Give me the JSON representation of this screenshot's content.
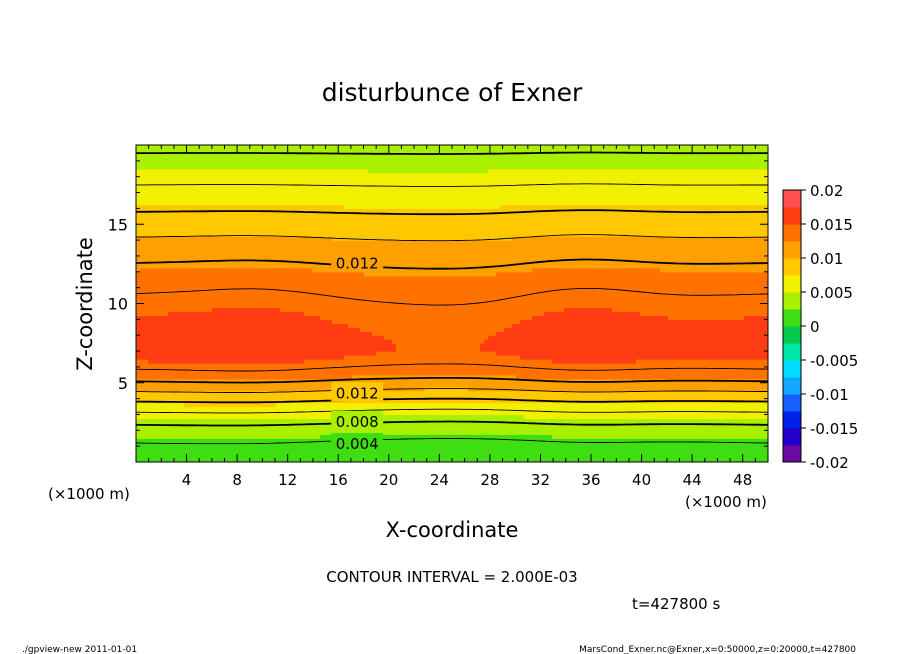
{
  "chart_data": {
    "type": "heatmap",
    "title": "disturbunce of Exner",
    "xlabel": "X-coordinate",
    "ylabel": "Z-coordinate",
    "x_unit": "(×1000 m)",
    "x_unit_right": "(×1000 m)",
    "xlim": [
      0,
      50
    ],
    "ylim": [
      0,
      20
    ],
    "x_ticks": [
      4,
      8,
      12,
      16,
      20,
      24,
      28,
      32,
      36,
      40,
      44,
      48
    ],
    "y_ticks": [
      5,
      10,
      15
    ],
    "contour_interval_text": "CONTOUR INTERVAL = 2.000E-03",
    "contour_labels": [
      {
        "text": "0.012",
        "x": 17.5,
        "z": 12.6
      },
      {
        "text": "0.012",
        "x": 17.5,
        "z": 4.4
      },
      {
        "text": "0.008",
        "x": 17.5,
        "z": 2.6
      },
      {
        "text": "0.004",
        "x": 17.5,
        "z": 1.2
      }
    ],
    "levels": [
      -0.02,
      -0.0175,
      -0.015,
      -0.0125,
      -0.01,
      -0.0075,
      -0.005,
      -0.0025,
      0,
      0.0025,
      0.005,
      0.0075,
      0.01,
      0.0125,
      0.015,
      0.0175,
      0.02
    ],
    "colors": [
      "#6a0aa0",
      "#2200c8",
      "#0022e6",
      "#1760ff",
      "#12a8ff",
      "#00dcff",
      "#00e8a8",
      "#0ac84c",
      "#3fde12",
      "#a8f000",
      "#f0f000",
      "#ffc800",
      "#ffa000",
      "#ff7200",
      "#ff3c12",
      "#ff5050",
      "#ff9696"
    ],
    "colorbar_ticks": [
      "0.02",
      "0.015",
      "0.01",
      "0.005",
      "0",
      "-0.005",
      "-0.01",
      "-0.015",
      "-0.02"
    ],
    "time_text": "t=427800 s"
  },
  "footer": {
    "left": "./gpview-new   2011-01-01",
    "right": "MarsCond_Exner.nc@Exner,x=0:50000,z=0:20000,t=427800"
  }
}
